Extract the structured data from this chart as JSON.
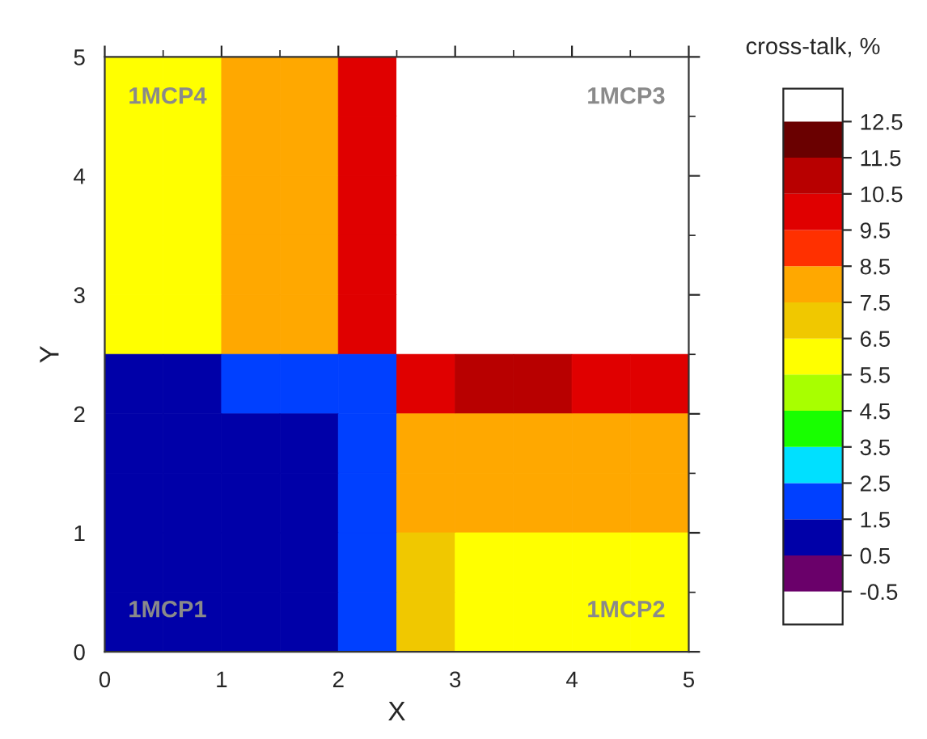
{
  "chart_data": {
    "type": "heatmap",
    "xlabel": "X",
    "ylabel": "Y",
    "clabel": "cross-talk, %",
    "x": [
      0.25,
      0.75,
      1.25,
      1.75,
      2.25,
      2.75,
      3.25,
      3.75,
      4.25,
      4.75
    ],
    "y": [
      4.75,
      4.25,
      3.75,
      3.25,
      2.75,
      2.25,
      1.75,
      1.25,
      0.75,
      0.25
    ],
    "cells": [
      [
        6,
        6,
        8,
        8,
        10,
        null,
        null,
        null,
        null,
        null
      ],
      [
        6,
        6,
        8,
        8,
        10,
        null,
        null,
        null,
        null,
        null
      ],
      [
        6,
        6,
        8,
        8,
        10,
        null,
        null,
        null,
        null,
        null
      ],
      [
        6,
        6,
        8,
        8,
        10,
        null,
        null,
        null,
        null,
        null
      ],
      [
        6,
        6,
        8,
        8,
        10,
        null,
        null,
        null,
        null,
        null
      ],
      [
        1,
        1,
        2,
        2,
        2,
        10,
        11,
        11,
        10,
        10
      ],
      [
        1,
        1,
        1,
        1,
        2,
        8,
        8,
        8,
        8,
        8
      ],
      [
        1,
        1,
        1,
        1,
        2,
        8,
        8,
        8,
        8,
        8
      ],
      [
        1,
        1,
        1,
        1,
        2,
        7,
        6,
        6,
        6,
        6
      ],
      [
        1,
        1,
        1,
        1,
        2,
        7,
        6,
        6,
        6,
        6
      ]
    ],
    "colors": [
      "#6a006a",
      "#0000a8",
      "#0040ff",
      "#00e0ff",
      "#18ff00",
      "#a8ff00",
      "#ffff00",
      "#f0c800",
      "#ffa800",
      "#ff3000",
      "#e00000",
      "#b80000",
      "#6a0000"
    ],
    "clim": [
      -0.5,
      12.5
    ],
    "cticks": [
      {
        "value": -0.5,
        "label": "-0.5"
      },
      0.5,
      1.5,
      2.5,
      3.5,
      4.5,
      5.5,
      6.5,
      7.5,
      8.5,
      9.5,
      10.5,
      11.5,
      12.5
    ],
    "xlim": [
      0,
      5
    ],
    "ylim": [
      0,
      5
    ],
    "xticks": [
      0,
      1,
      2,
      3,
      4,
      5
    ],
    "yticks": [
      0,
      1,
      2,
      3,
      4,
      5
    ],
    "annotations": [
      "1MCP4",
      "1MCP3",
      "1MCP1",
      "1MCP2"
    ]
  }
}
